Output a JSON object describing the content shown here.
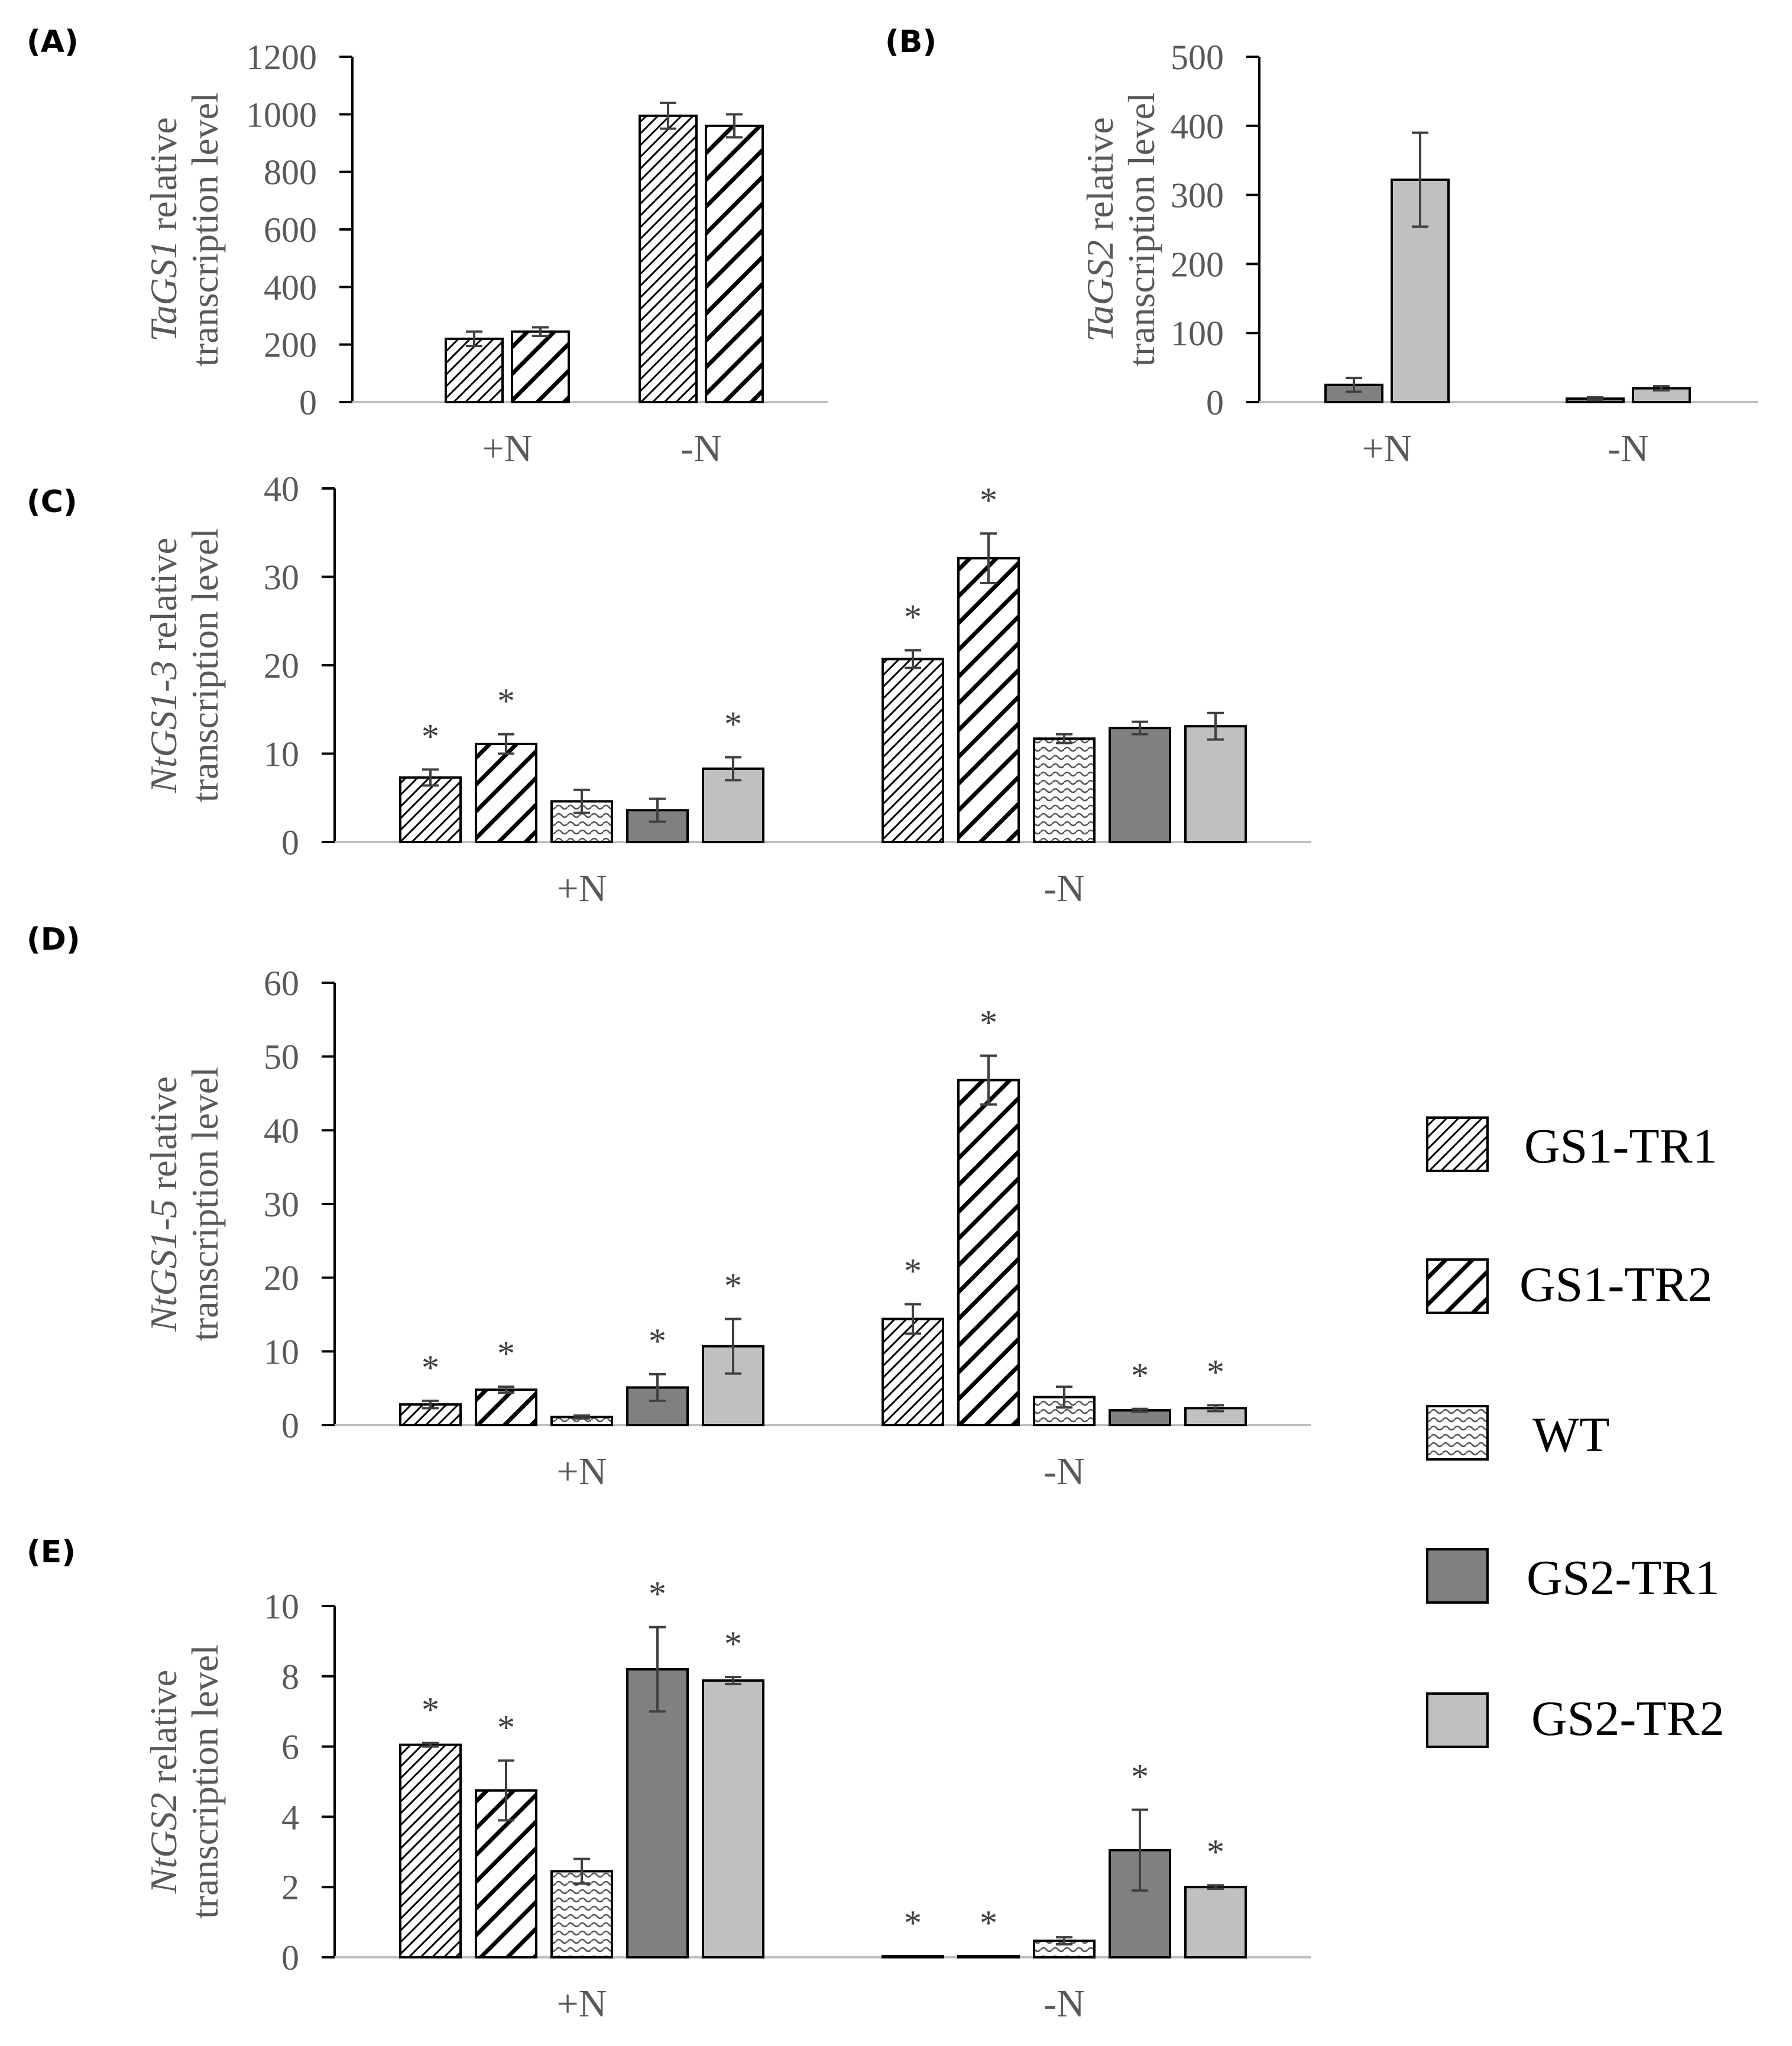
{
  "legend": {
    "items": [
      {
        "label": "GS1-TR1",
        "pattern": "fine-hatch"
      },
      {
        "label": "GS1-TR2",
        "pattern": "bold-hatch"
      },
      {
        "label": "WT",
        "pattern": "wave"
      },
      {
        "label": "GS2-TR1",
        "pattern": "dark-gray"
      },
      {
        "label": "GS2-TR2",
        "pattern": "light-gray"
      }
    ]
  },
  "colors": {
    "gs2_tr1": "#808080",
    "gs2_tr2": "#c0c0c0",
    "axis": "#bfbfbf",
    "text": "#595959"
  },
  "chart_data": [
    {
      "panel": "(A)",
      "type": "bar",
      "ylabel_gene": "TaGS1",
      "ylabel_rest": " relative",
      "ylabel_line2": "transcription level",
      "ylim": [
        0,
        1200
      ],
      "yticks": [
        "0",
        "200",
        "400",
        "600",
        "800",
        "1000",
        "1200"
      ],
      "categories": [
        "+N",
        "-N"
      ],
      "series": [
        {
          "name": "GS1-TR1",
          "values": [
            220,
            995
          ],
          "errors": [
            25,
            45
          ],
          "stars": [
            false,
            false
          ]
        },
        {
          "name": "GS1-TR2",
          "values": [
            245,
            960
          ],
          "errors": [
            15,
            40
          ],
          "stars": [
            false,
            false
          ]
        }
      ]
    },
    {
      "panel": "(B)",
      "type": "bar",
      "ylabel_gene": "TaGS2",
      "ylabel_rest": " relative",
      "ylabel_line2": "transcription level",
      "ylim": [
        0,
        500
      ],
      "yticks": [
        "0",
        "100",
        "200",
        "300",
        "400",
        "500"
      ],
      "categories": [
        "+N",
        "-N"
      ],
      "series": [
        {
          "name": "GS2-TR1",
          "values": [
            25,
            5
          ],
          "errors": [
            10,
            2
          ],
          "stars": [
            false,
            false
          ]
        },
        {
          "name": "GS2-TR2",
          "values": [
            322,
            20
          ],
          "errors": [
            68,
            3
          ],
          "stars": [
            false,
            false
          ]
        }
      ]
    },
    {
      "panel": "(C)",
      "type": "bar",
      "ylabel_gene": "NtGS1-3",
      "ylabel_rest": " relative",
      "ylabel_line2": "transcription level",
      "ylim": [
        0,
        40
      ],
      "yticks": [
        "0",
        "10",
        "20",
        "30",
        "40"
      ],
      "categories": [
        "+N",
        "-N"
      ],
      "series": [
        {
          "name": "GS1-TR1",
          "values": [
            7.3,
            20.7
          ],
          "errors": [
            0.9,
            1.0
          ],
          "stars": [
            true,
            true
          ]
        },
        {
          "name": "GS1-TR2",
          "values": [
            11.1,
            32.1
          ],
          "errors": [
            1.1,
            2.8
          ],
          "stars": [
            true,
            true
          ]
        },
        {
          "name": "WT",
          "values": [
            4.6,
            11.7
          ],
          "errors": [
            1.3,
            0.5
          ],
          "stars": [
            false,
            false
          ]
        },
        {
          "name": "GS2-TR1",
          "values": [
            3.6,
            12.9
          ],
          "errors": [
            1.3,
            0.7
          ],
          "stars": [
            false,
            false
          ]
        },
        {
          "name": "GS2-TR2",
          "values": [
            8.3,
            13.1
          ],
          "errors": [
            1.3,
            1.5
          ],
          "stars": [
            true,
            false
          ]
        }
      ]
    },
    {
      "panel": "(D)",
      "type": "bar",
      "ylabel_gene": "NtGS1-5",
      "ylabel_rest": " relative",
      "ylabel_line2": "transcription level",
      "ylim": [
        0,
        60
      ],
      "yticks": [
        "0",
        "10",
        "20",
        "30",
        "40",
        "50",
        "60"
      ],
      "categories": [
        "+N",
        "-N"
      ],
      "series": [
        {
          "name": "GS1-TR1",
          "values": [
            2.8,
            14.4
          ],
          "errors": [
            0.5,
            2.0
          ],
          "stars": [
            true,
            true
          ]
        },
        {
          "name": "GS1-TR2",
          "values": [
            4.8,
            46.8
          ],
          "errors": [
            0.4,
            3.3
          ],
          "stars": [
            true,
            true
          ]
        },
        {
          "name": "WT",
          "values": [
            1.1,
            3.8
          ],
          "errors": [
            0.2,
            1.4
          ],
          "stars": [
            false,
            false
          ]
        },
        {
          "name": "GS2-TR1",
          "values": [
            5.1,
            2.0
          ],
          "errors": [
            1.8,
            0.2
          ],
          "stars": [
            true,
            true
          ]
        },
        {
          "name": "GS2-TR2",
          "values": [
            10.7,
            2.3
          ],
          "errors": [
            3.7,
            0.4
          ],
          "stars": [
            true,
            true
          ]
        }
      ]
    },
    {
      "panel": "(E)",
      "type": "bar",
      "ylabel_gene": "NtGS2",
      "ylabel_rest": " relative",
      "ylabel_line2": "transcription level",
      "ylim": [
        0,
        10
      ],
      "yticks": [
        "0",
        "2",
        "4",
        "6",
        "8",
        "10"
      ],
      "categories": [
        "+N",
        "-N"
      ],
      "series": [
        {
          "name": "GS1-TR1",
          "values": [
            6.05,
            0.03
          ],
          "errors": [
            0.05,
            0.0
          ],
          "stars": [
            true,
            true
          ]
        },
        {
          "name": "GS1-TR2",
          "values": [
            4.75,
            0.03
          ],
          "errors": [
            0.85,
            0.0
          ],
          "stars": [
            true,
            true
          ]
        },
        {
          "name": "WT",
          "values": [
            2.45,
            0.47
          ],
          "errors": [
            0.35,
            0.1
          ],
          "stars": [
            false,
            false
          ]
        },
        {
          "name": "GS2-TR1",
          "values": [
            8.2,
            3.05
          ],
          "errors": [
            1.2,
            1.15
          ],
          "stars": [
            true,
            true
          ]
        },
        {
          "name": "GS2-TR2",
          "values": [
            7.88,
            2.0
          ],
          "errors": [
            0.1,
            0.05
          ],
          "stars": [
            true,
            true
          ]
        }
      ]
    }
  ]
}
